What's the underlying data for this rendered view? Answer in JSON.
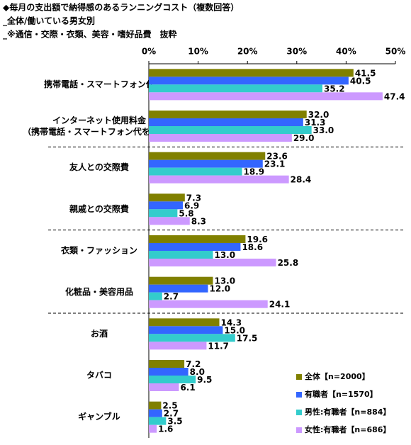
{
  "chart_data": {
    "type": "bar",
    "orientation": "horizontal",
    "title": "◆毎月の支出額で納得感のあるランニングコスト（複数回答）",
    "subtitles": [
      "_全体/働いている男女別",
      "_※通信・交際・衣類、美容・嗜好品費　抜粋"
    ],
    "categories": [
      "携帯電話・スマートフォン代",
      "インターネット使用料金\n（携帯電話・スマートフォン代を除く）",
      "友人との交際費",
      "親戚との交際費",
      "衣類・ファッション",
      "化粧品・美容用品",
      "お酒",
      "タバコ",
      "ギャンブル"
    ],
    "xlim": [
      0,
      50
    ],
    "xticks": [
      {
        "value": 0,
        "label": "0%"
      },
      {
        "value": 10,
        "label": "10%"
      },
      {
        "value": 20,
        "label": "20%"
      },
      {
        "value": 30,
        "label": "30%"
      },
      {
        "value": 40,
        "label": "40%"
      },
      {
        "value": 50,
        "label": "50%"
      }
    ],
    "legend": "bottom-right",
    "series": [
      {
        "name": "全体【n=2000】",
        "color": "#808000",
        "values": [
          41.5,
          32.0,
          23.6,
          7.3,
          19.6,
          13.0,
          14.3,
          7.2,
          2.5
        ],
        "value_labels": [
          "41.5",
          "32.0",
          "23.6",
          "7.3",
          "19.6",
          "13.0",
          "14.3",
          "7.2",
          "2.5"
        ]
      },
      {
        "name": "有職者【n=1570】",
        "color": "#3366ff",
        "values": [
          40.5,
          31.3,
          23.1,
          6.9,
          18.6,
          12.0,
          15.0,
          8.0,
          2.7
        ],
        "value_labels": [
          "40.5",
          "31.3",
          "23.1",
          "6.9",
          "18.6",
          "12.0",
          "15.0",
          "8.0",
          "2.7"
        ]
      },
      {
        "name": "男性:有職者【n=884】",
        "color": "#33cccc",
        "values": [
          35.2,
          33.0,
          18.9,
          5.8,
          13.0,
          2.7,
          17.5,
          9.5,
          3.5
        ],
        "value_labels": [
          "35.2",
          "33.0",
          "18.9",
          "5.8",
          "13.0",
          "2.7",
          "17.5",
          "9.5",
          "3.5"
        ]
      },
      {
        "name": "女性:有職者【n=686】",
        "color": "#cc99ff",
        "values": [
          47.4,
          29.0,
          28.4,
          8.3,
          25.8,
          24.1,
          11.7,
          6.1,
          1.6
        ],
        "value_labels": [
          "47.4",
          "29.0",
          "28.4",
          "8.3",
          "25.8",
          "24.1",
          "11.7",
          "6.1",
          "1.6"
        ]
      }
    ]
  }
}
